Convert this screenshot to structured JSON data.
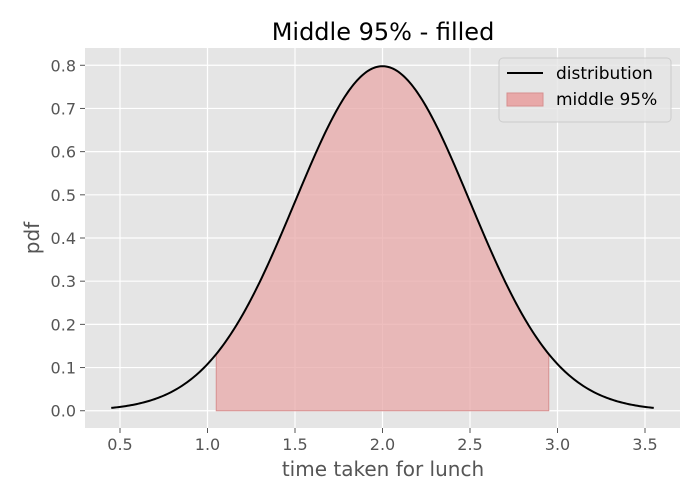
{
  "chart_data": {
    "type": "line",
    "title": "Middle 95% - filled",
    "xlabel": "time taken for lunch",
    "ylabel": "pdf",
    "xlim": [
      0.3,
      3.7
    ],
    "ylim": [
      -0.04,
      0.84
    ],
    "xticks": [
      0.5,
      1.0,
      1.5,
      2.0,
      2.5,
      3.0,
      3.5
    ],
    "xtick_labels": [
      "0.5",
      "1.0",
      "1.5",
      "2.0",
      "2.5",
      "3.0",
      "3.5"
    ],
    "yticks": [
      0.0,
      0.1,
      0.2,
      0.3,
      0.4,
      0.5,
      0.6,
      0.7,
      0.8
    ],
    "ytick_labels": [
      "0.0",
      "0.1",
      "0.2",
      "0.3",
      "0.4",
      "0.5",
      "0.6",
      "0.7",
      "0.8"
    ],
    "grid": true,
    "legend_position": "top-right",
    "series": [
      {
        "name": "distribution",
        "kind": "line",
        "color": "#000000",
        "distribution": "normal",
        "mean": 2.0,
        "sd": 0.5,
        "x_range": [
          0.45,
          3.55
        ]
      },
      {
        "name": "middle 95%",
        "kind": "area",
        "color": "#e8a8a8",
        "x_range": [
          1.05,
          2.95
        ]
      }
    ]
  },
  "colors": {
    "axes_background": "#e5e5e5",
    "grid": "#ffffff",
    "text": "#555555",
    "title": "#000000",
    "fill": "#e8a8a8",
    "fill_edge": "#d68f8f"
  }
}
